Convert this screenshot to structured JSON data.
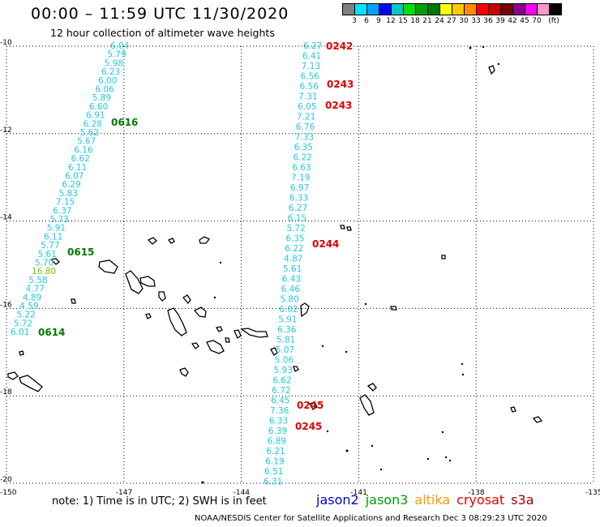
{
  "header": {
    "title": "00:00 – 11:59 UTC 11/30/2020",
    "subtitle": "12 hour collection of altimeter wave heights"
  },
  "legend": {
    "colors": [
      "#7f7f7f",
      "#00e5ff",
      "#00a2ff",
      "#0000ff",
      "#00c8c8",
      "#00e000",
      "#00a000",
      "#007800",
      "#ffff00",
      "#ffc800",
      "#ff8c00",
      "#ff0000",
      "#c80000",
      "#780000",
      "#8c008c",
      "#ff00ff",
      "#ff96c8",
      "#000000"
    ],
    "labels": [
      "3",
      "6",
      "9",
      "12",
      "15",
      "18",
      "21",
      "24",
      "27",
      "30",
      "33",
      "36",
      "39",
      "42",
      "45",
      "70",
      "(ft)"
    ]
  },
  "axes": {
    "lat": [
      "-10",
      "-12",
      "-14",
      "-16",
      "-18",
      "-20"
    ],
    "lon": [
      "-150",
      "-147",
      "-144",
      "-141",
      "-138",
      "-135"
    ]
  },
  "tracks": {
    "west": [
      "6.04",
      "5.79",
      "5.98",
      "6.23",
      "6.00",
      "6.06",
      "5.89",
      "6.60",
      "6.91",
      "6.28",
      "5.62",
      "5.67",
      "6.16",
      "6.62",
      "6.11",
      "6.07",
      "6.29",
      "5.83",
      "7.15",
      "6.37",
      "5.73",
      "5.91",
      "6.11",
      "5.77",
      "5.61",
      "5.70",
      "16.80",
      "5.58",
      "4.77",
      "4.89",
      "4.59",
      "5.22",
      "5.72",
      "6.01"
    ],
    "east": [
      "6.27",
      "6.41",
      "7.13",
      "6.56",
      "6.56",
      "7.31",
      "6.05",
      "7.21",
      "6.76",
      "7.33",
      "6.35",
      "6.22",
      "6.63",
      "7.19",
      "6.97",
      "6.33",
      "6.27",
      "6.15",
      "5.72",
      "6.35",
      "6.22",
      "4.87",
      "5.61",
      "6.43",
      "6.46",
      "5.80",
      "6.02",
      "5.91",
      "6.36",
      "5.81",
      "5.07",
      "5.06",
      "5.93",
      "6.62",
      "6.72",
      "6.45",
      "7.36",
      "6.33",
      "6.39",
      "6.89",
      "6.21",
      "6.19",
      "6.51",
      "6.31"
    ]
  },
  "pass_labels": [
    {
      "text": "0242",
      "color": "#e00000"
    },
    {
      "text": "0243",
      "color": "#e00000"
    },
    {
      "text": "0243",
      "color": "#e00000"
    },
    {
      "text": "0244",
      "color": "#e00000"
    },
    {
      "text": "0245",
      "color": "#e00000"
    },
    {
      "text": "0245",
      "color": "#e00000"
    },
    {
      "text": "0616",
      "color": "#007a00"
    },
    {
      "text": "0615",
      "color": "#007a00"
    },
    {
      "text": "0614",
      "color": "#007a00"
    }
  ],
  "footer": {
    "note": "note: 1) Time is in UTC; 2) SWH is in feet",
    "satellites": [
      {
        "name": "jason2",
        "color": "#0000e0"
      },
      {
        "name": "jason3",
        "color": "#00a000"
      },
      {
        "name": "altika",
        "color": "#ff9900"
      },
      {
        "name": "cryosat",
        "color": "#e00000"
      },
      {
        "name": "s3a",
        "color": "#a00000"
      }
    ],
    "credit": "NOAA/NESDIS Center for Satellite Applications and Research    Dec  3 08:29:23 UTC 2020"
  }
}
